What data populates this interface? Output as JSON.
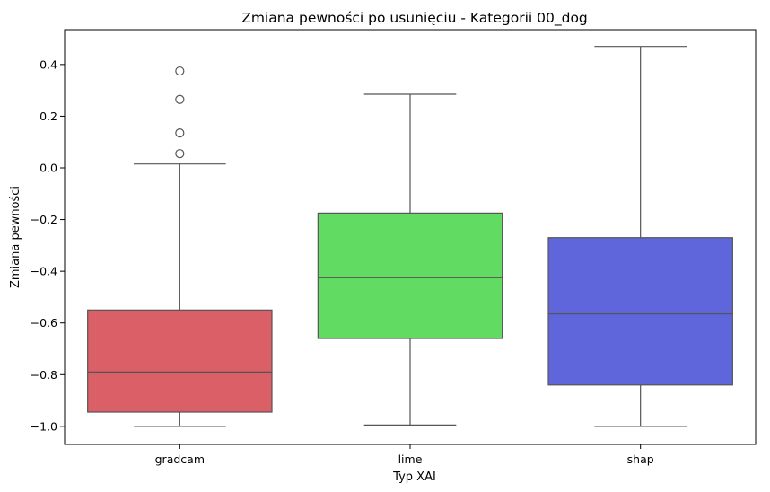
{
  "chart_data": {
    "type": "box",
    "title": "Zmiana pewności po usunięciu - Kategorii 00_dog",
    "xlabel": "Typ XAI",
    "ylabel": "Zmiana pewności",
    "ylim": [
      -1.07,
      0.535
    ],
    "yticks": [
      -1.0,
      -0.8,
      -0.6,
      -0.4,
      -0.2,
      0.0,
      0.2,
      0.4
    ],
    "ytick_labels": [
      "−1.0",
      "−0.8",
      "−0.6",
      "−0.4",
      "−0.2",
      "0.0",
      "0.2",
      "0.4"
    ],
    "grid": false,
    "categories": [
      "gradcam",
      "lime",
      "shap"
    ],
    "boxes": [
      {
        "category": "gradcam",
        "whisker_low": -1.0,
        "q1": -0.945,
        "median": -0.79,
        "q3": -0.55,
        "whisker_high": 0.015,
        "outliers": [
          0.055,
          0.135,
          0.265,
          0.375
        ],
        "color": "#db5f66"
      },
      {
        "category": "lime",
        "whisker_low": -0.995,
        "q1": -0.66,
        "median": -0.425,
        "q3": -0.175,
        "whisker_high": 0.285,
        "outliers": [],
        "color": "#62db62"
      },
      {
        "category": "shap",
        "whisker_low": -1.0,
        "q1": -0.84,
        "median": -0.565,
        "q3": -0.27,
        "whisker_high": 0.47,
        "outliers": [],
        "color": "#5f66db"
      }
    ]
  }
}
